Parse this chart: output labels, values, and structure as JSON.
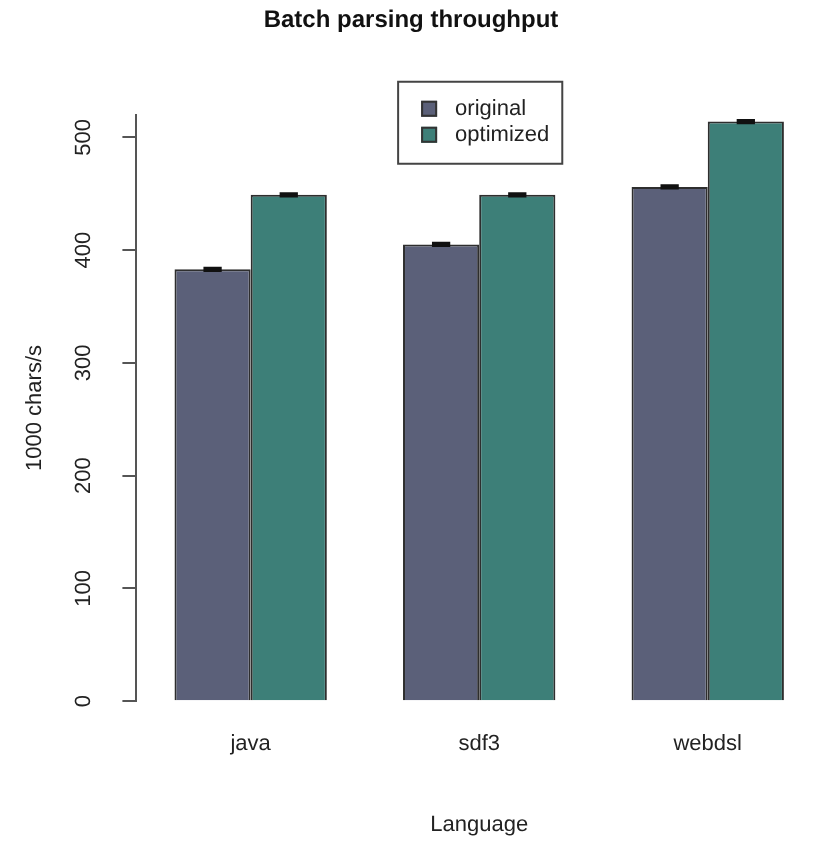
{
  "chart_data": {
    "type": "bar",
    "title": "Batch parsing throughput",
    "xlabel": "Language",
    "ylabel": "1000 chars/s",
    "categories": [
      "java",
      "sdf3",
      "webdsl"
    ],
    "series": [
      {
        "name": "original",
        "color": "#5b6079",
        "values": [
          383,
          405,
          456
        ],
        "errors": [
          1,
          1,
          1
        ]
      },
      {
        "name": "optimized",
        "color": "#3d7f78",
        "values": [
          449,
          449,
          514
        ],
        "errors": [
          1,
          1,
          1
        ]
      }
    ],
    "ylim": [
      0,
      520
    ],
    "yticks": [
      0,
      100,
      200,
      300,
      400,
      500
    ],
    "grid": false,
    "legend": "top"
  }
}
